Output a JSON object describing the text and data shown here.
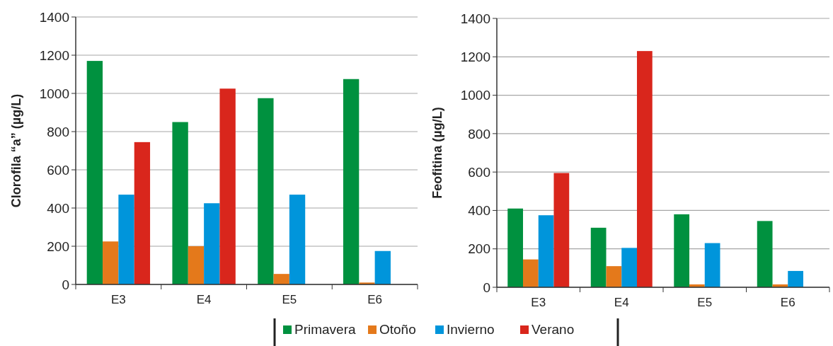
{
  "chart_data": [
    {
      "type": "bar",
      "ylabel": "Clorofila “a” (µg/L)",
      "categories": [
        "E3",
        "E4",
        "E5",
        "E6"
      ],
      "ylim": [
        0,
        1400
      ],
      "yticks": [
        0,
        200,
        400,
        600,
        800,
        1000,
        1200,
        1400
      ],
      "grid": "y",
      "legend": "bottom",
      "series": [
        {
          "name": "Primavera",
          "color": "#00913f",
          "values": [
            1170,
            850,
            975,
            1075
          ]
        },
        {
          "name": "Otoño",
          "color": "#e4791b",
          "values": [
            225,
            200,
            55,
            10
          ]
        },
        {
          "name": "Invierno",
          "color": "#0095db",
          "values": [
            470,
            425,
            470,
            175
          ]
        },
        {
          "name": "Verano",
          "color": "#d9261c",
          "values": [
            745,
            1025,
            null,
            null
          ]
        }
      ]
    },
    {
      "type": "bar",
      "ylabel": "Feofitina (µg/L)",
      "categories": [
        "E3",
        "E4",
        "E5",
        "E6"
      ],
      "ylim": [
        0,
        1400
      ],
      "yticks": [
        0,
        200,
        400,
        600,
        800,
        1000,
        1200,
        1400
      ],
      "grid": "y",
      "series": [
        {
          "color": "#00913f",
          "values": [
            410,
            310,
            380,
            345
          ]
        },
        {
          "color": "#e4791b",
          "values": [
            145,
            110,
            15,
            15
          ]
        },
        {
          "color": "#0095db",
          "values": [
            375,
            205,
            230,
            85
          ]
        },
        {
          "color": "#d9261c",
          "values": [
            595,
            1230,
            null,
            null
          ]
        }
      ]
    }
  ]
}
